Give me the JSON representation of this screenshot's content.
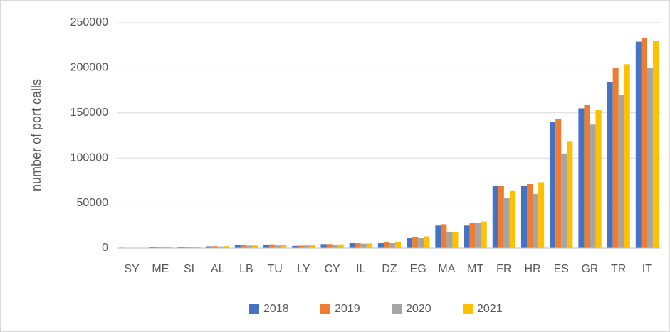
{
  "chart_data": {
    "type": "bar",
    "y_label": "number of port calls",
    "categories": [
      "SY",
      "ME",
      "SI",
      "AL",
      "LB",
      "TU",
      "LY",
      "CY",
      "IL",
      "DZ",
      "EG",
      "MA",
      "MT",
      "FR",
      "HR",
      "ES",
      "GR",
      "TR",
      "IT"
    ],
    "series": [
      {
        "name": "2018",
        "color": "#4472c4",
        "values": [
          500,
          1000,
          1500,
          2000,
          3500,
          4000,
          2500,
          4500,
          5500,
          5500,
          11000,
          25000,
          25000,
          69000,
          69000,
          140000,
          155000,
          184000,
          229000
        ]
      },
      {
        "name": "2019",
        "color": "#ed7d31",
        "values": [
          300,
          1200,
          1600,
          2200,
          3500,
          4200,
          2800,
          4500,
          5500,
          6500,
          12500,
          26500,
          28000,
          69000,
          71000,
          143000,
          159000,
          200000,
          233000
        ]
      },
      {
        "name": "2020",
        "color": "#a5a5a5",
        "values": [
          200,
          800,
          1200,
          1800,
          2800,
          3000,
          3000,
          3800,
          5000,
          5500,
          11000,
          18000,
          28000,
          56000,
          60000,
          105000,
          137000,
          170000,
          200000
        ]
      },
      {
        "name": "2021",
        "color": "#ffc000",
        "values": [
          300,
          1000,
          1400,
          2300,
          3000,
          3500,
          3800,
          4200,
          5200,
          7000,
          13000,
          18000,
          29500,
          64000,
          73000,
          118000,
          153000,
          204000,
          230000
        ]
      }
    ],
    "ylim": [
      0,
      250000
    ],
    "yticks": [
      0,
      50000,
      100000,
      150000,
      200000,
      250000
    ],
    "grid": true,
    "legend": "bottom"
  }
}
